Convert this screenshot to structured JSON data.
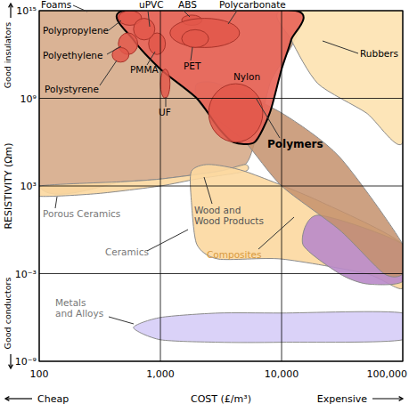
{
  "chart_data": {
    "type": "region",
    "x_label": "COST (£/m³)",
    "y_label": "RESISTIVITY (Ωm)",
    "annotations": [
      "Good insulators",
      "Good conductors",
      "Cheap",
      "Expensive"
    ],
    "log": true,
    "grid": true,
    "xlim": [
      100,
      100000
    ],
    "ylim": [
      1e-09,
      1000000000000000.0
    ],
    "xticks": [
      100,
      {
        "value": 1000,
        "label": "1,000"
      },
      {
        "value": 10000,
        "label": "10,000"
      },
      {
        "value": 100000,
        "label": "100,000"
      }
    ],
    "yticks": [
      {
        "value": 1e-09,
        "label": "10⁻⁹"
      },
      {
        "value": 0.001,
        "label": "10⁻³"
      },
      {
        "value": 1000.0,
        "label": "10³"
      },
      {
        "value": 1000000000.0,
        "label": "10⁹"
      },
      {
        "value": 1000000000000000.0,
        "label": "10¹⁵"
      }
    ],
    "series": [
      {
        "name": "Foams",
        "type": "area",
        "color": "#d6ab8a",
        "x": [
          100,
          12000,
          8000,
          6000,
          5000,
          3000,
          1000,
          500,
          100
        ],
        "y": [
          1000000000000000.0,
          1000000000000000.0,
          10000000000.0,
          1000000.0,
          30000.0,
          10000.0,
          3000.0,
          2000.0,
          1000.0
        ]
      },
      {
        "name": "Porous Ceramics",
        "type": "area",
        "color": "#fcd8a0",
        "x": [
          100,
          500,
          1000,
          3000,
          5000,
          5000,
          2000,
          1000,
          300,
          100
        ],
        "y": [
          1000.0,
          2000.0,
          3000.0,
          10000.0,
          30000.0,
          10000.0,
          3000.0,
          1000.0,
          300.0,
          200.0
        ]
      },
      {
        "name": "Rubbers",
        "type": "area",
        "color": "#fde2b0",
        "x": [
          10000,
          100000,
          100000,
          50000,
          20000,
          12000
        ],
        "y": [
          1000000000000000.0,
          1000000000000000.0,
          1000000.0,
          100000000.0,
          10000000000.0,
          10000000000000.0
        ]
      },
      {
        "name": "Ceramics",
        "type": "area",
        "color": "#fcd8a0",
        "x": [
          1800,
          2500,
          5000,
          20000,
          100000,
          100000,
          50000,
          10000,
          3000,
          2000,
          1800
        ],
        "y": [
          10000.0,
          30000.0,
          10000.0,
          100.0,
          0.1,
          0.0001,
          0.001,
          0.01,
          0.01,
          0.1,
          100.0
        ]
      },
      {
        "name": "Composites",
        "type": "area",
        "color": "#b98ac9",
        "x": [
          20000,
          100000,
          100000,
          50000,
          30000,
          15000
        ],
        "y": [
          10.0,
          0.1,
          0.0003,
          0.0002,
          0.001,
          0.1
        ]
      },
      {
        "name": "Wood and\nWood Products",
        "type": "area",
        "color": "#c4906c",
        "x": [
          2000,
          3000,
          10000,
          30000,
          100000,
          100000,
          70000,
          30000,
          10000,
          5000,
          2500,
          2000
        ],
        "y": [
          10000000000.0,
          10000000000.0,
          100000000.0,
          100000.0,
          0.1,
          0.001,
          0.001,
          1.0,
          1000.0,
          1000000.0,
          100000000.0,
          1000000000.0
        ]
      },
      {
        "name": "Polymers",
        "type": "area",
        "color": "#e8665a",
        "x": [
          500,
          600,
          1000,
          2000,
          3000,
          4000,
          6000,
          8000,
          10000,
          12000,
          13000
        ],
        "y": [
          1000000000000000.0,
          10000000000000.0,
          100000000000.0,
          1000000000.0,
          10000000.0,
          1000000.0,
          1000000.0,
          100000000.0,
          100000000000.0,
          10000000000000.0,
          1000000000000000.0
        ]
      },
      {
        "name": "Polypropylene",
        "type": "ellipse",
        "color": "#e2574a",
        "x": [
          450,
          700
        ],
        "y": [
          100000000000000.0,
          1000000000000000.0
        ]
      },
      {
        "name": "Polyethylene",
        "type": "ellipse",
        "color": "#e2574a",
        "x": [
          450,
          650
        ],
        "y": [
          1000000000000.0,
          30000000000000.0
        ]
      },
      {
        "name": "Polystyrene",
        "type": "ellipse",
        "color": "#e2574a",
        "x": [
          400,
          550
        ],
        "y": [
          300000000000.0,
          3000000000000.0
        ]
      },
      {
        "name": "PMMA",
        "type": "ellipse",
        "color": "#e2574a",
        "x": [
          800,
          1100
        ],
        "y": [
          1000000000000.0,
          30000000000000.0
        ]
      },
      {
        "name": "uPVC",
        "type": "ellipse",
        "color": "#e2574a",
        "x": [
          600,
          900
        ],
        "y": [
          10000000000000.0,
          300000000000000.0
        ]
      },
      {
        "name": "ABS",
        "type": "ellipse",
        "color": "#e2574a",
        "x": [
          1500,
          2200
        ],
        "y": [
          100000000000000.0,
          500000000000000.0
        ]
      },
      {
        "name": "Polycarbonate",
        "type": "ellipse",
        "color": "#e2574a",
        "x": [
          1200,
          4500
        ],
        "y": [
          3000000000000.0,
          300000000000000.0
        ]
      },
      {
        "name": "PET",
        "type": "ellipse",
        "color": "#e2574a",
        "x": [
          1500,
          2500
        ],
        "y": [
          3000000000000.0,
          50000000000000.0
        ]
      },
      {
        "name": "UF",
        "type": "ellipse",
        "color": "#e2574a",
        "x": [
          1000,
          1200
        ],
        "y": [
          1000000000.0,
          100000000000.0
        ]
      },
      {
        "name": "Nylon",
        "type": "ellipse",
        "color": "#e2574a",
        "x": [
          2500,
          7000
        ],
        "y": [
          1000000.0,
          10000000000.0
        ]
      },
      {
        "name": "Metals\nand Alloys",
        "type": "area",
        "color": "#d6cdf7",
        "x": [
          600,
          1000,
          3000,
          10000,
          100000,
          100000,
          10000,
          3000,
          1000
        ],
        "y": [
          2e-07,
          1e-06,
          2e-06,
          2e-06,
          2e-06,
          3e-08,
          2e-08,
          2e-08,
          3e-08
        ]
      }
    ]
  }
}
